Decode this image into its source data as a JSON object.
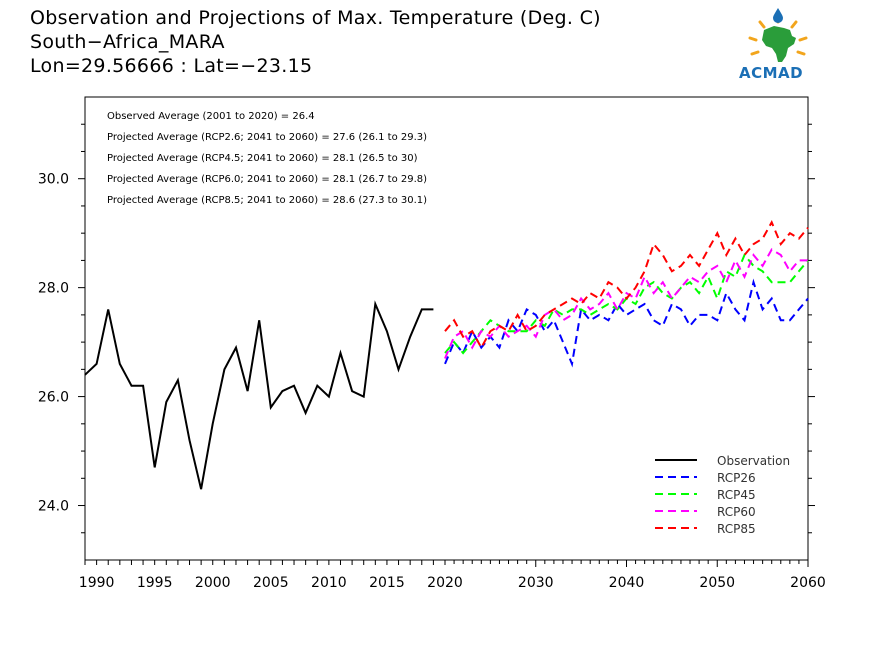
{
  "header": {
    "title_line1": "Observation and Projections of Max. Temperature (Deg. C)",
    "title_line2": "South−Africa_MARA",
    "title_line3": "Lon=29.56666 : Lat=−23.15"
  },
  "logo": {
    "text": "ACMAD",
    "icon": "africa-map-logo-icon",
    "colors": {
      "map": "#2a9d3a",
      "sun": "#f2a51c",
      "drop": "#1b6fb5",
      "text": "#1b6fb5"
    }
  },
  "annotations": [
    "Observed Average (2001 to 2020) = 26.4",
    "Projected Average (RCP2.6; 2041 to 2060) = 27.6 (26.1 to 29.3)",
    "Projected Average (RCP4.5; 2041 to 2060) = 28.1 (26.5 to 30)",
    "Projected Average (RCP6.0; 2041 to 2060) = 28.1 (26.7 to 29.8)",
    "Projected Average (RCP8.5; 2041 to 2060) = 28.6 (27.3 to 30.1)"
  ],
  "chart_data": {
    "type": "line",
    "title": "Observation and Projections of Max. Temperature (Deg. C)",
    "xlabel": "",
    "ylabel": "",
    "ylim": [
      23.0,
      31.5
    ],
    "grid": false,
    "legend_position": "bottom-right",
    "x_tick_labels": [
      "1990",
      "1995",
      "2000",
      "2005",
      "2010",
      "2015",
      "2020",
      "2030",
      "2040",
      "2050",
      "2060"
    ],
    "y_tick_labels": [
      "24.0",
      "26.0",
      "28.0",
      "30.0"
    ],
    "series": [
      {
        "name": "Observation",
        "style": "solid",
        "color": "#000000",
        "x": [
          1989,
          1990,
          1991,
          1992,
          1993,
          1994,
          1995,
          1996,
          1997,
          1998,
          1999,
          2000,
          2001,
          2002,
          2003,
          2004,
          2005,
          2006,
          2007,
          2008,
          2009,
          2010,
          2011,
          2012,
          2013,
          2014,
          2015,
          2016,
          2017,
          2018,
          2019
        ],
        "values": [
          26.4,
          26.6,
          27.6,
          26.6,
          26.2,
          26.2,
          24.7,
          25.9,
          26.3,
          25.2,
          24.3,
          25.5,
          26.5,
          26.9,
          26.1,
          27.4,
          25.8,
          26.1,
          26.2,
          25.7,
          26.2,
          26.0,
          26.8,
          26.1,
          26.0,
          27.7,
          27.2,
          26.5,
          27.1,
          27.6,
          27.6
        ]
      },
      {
        "name": "RCP26",
        "style": "dashed",
        "color": "#0000ff",
        "x": [
          2020,
          2021,
          2022,
          2023,
          2024,
          2025,
          2026,
          2027,
          2028,
          2029,
          2030,
          2031,
          2032,
          2033,
          2034,
          2035,
          2036,
          2037,
          2038,
          2039,
          2040,
          2041,
          2042,
          2043,
          2044,
          2045,
          2046,
          2047,
          2048,
          2049,
          2050,
          2051,
          2052,
          2053,
          2054,
          2055,
          2056,
          2057,
          2058,
          2059,
          2060
        ],
        "values": [
          26.6,
          27.0,
          26.8,
          27.2,
          26.9,
          27.1,
          26.9,
          27.4,
          27.2,
          27.6,
          27.5,
          27.2,
          27.4,
          27.0,
          26.6,
          27.6,
          27.4,
          27.5,
          27.4,
          27.7,
          27.5,
          27.6,
          27.7,
          27.4,
          27.3,
          27.7,
          27.6,
          27.3,
          27.5,
          27.5,
          27.4,
          27.9,
          27.6,
          27.4,
          28.1,
          27.6,
          27.8,
          27.4,
          27.4,
          27.6,
          27.8
        ]
      },
      {
        "name": "RCP45",
        "style": "dashed",
        "color": "#00ff00",
        "x": [
          2020,
          2021,
          2022,
          2023,
          2024,
          2025,
          2026,
          2027,
          2028,
          2029,
          2030,
          2031,
          2032,
          2033,
          2034,
          2035,
          2036,
          2037,
          2038,
          2039,
          2040,
          2041,
          2042,
          2043,
          2044,
          2045,
          2046,
          2047,
          2048,
          2049,
          2050,
          2051,
          2052,
          2053,
          2054,
          2055,
          2056,
          2057,
          2058,
          2059,
          2060
        ],
        "values": [
          26.8,
          27.0,
          26.8,
          27.0,
          27.2,
          27.4,
          27.3,
          27.2,
          27.2,
          27.2,
          27.4,
          27.3,
          27.6,
          27.5,
          27.6,
          27.6,
          27.5,
          27.6,
          27.7,
          27.6,
          27.8,
          27.7,
          28.0,
          28.1,
          27.9,
          27.8,
          28.0,
          28.1,
          27.9,
          28.2,
          27.8,
          28.3,
          28.2,
          28.6,
          28.4,
          28.3,
          28.1,
          28.1,
          28.1,
          28.3,
          28.5
        ]
      },
      {
        "name": "RCP60",
        "style": "dashed",
        "color": "#ff00ff",
        "x": [
          2020,
          2021,
          2022,
          2023,
          2024,
          2025,
          2026,
          2027,
          2028,
          2029,
          2030,
          2031,
          2032,
          2033,
          2034,
          2035,
          2036,
          2037,
          2038,
          2039,
          2040,
          2041,
          2042,
          2043,
          2044,
          2045,
          2046,
          2047,
          2048,
          2049,
          2050,
          2051,
          2052,
          2053,
          2054,
          2055,
          2056,
          2057,
          2058,
          2059,
          2060
        ],
        "values": [
          26.7,
          27.1,
          27.2,
          26.9,
          27.2,
          27.1,
          27.3,
          27.1,
          27.2,
          27.3,
          27.1,
          27.5,
          27.6,
          27.4,
          27.5,
          27.8,
          27.6,
          27.7,
          27.9,
          27.6,
          27.9,
          27.8,
          28.2,
          27.9,
          28.1,
          27.8,
          28.0,
          28.2,
          28.1,
          28.3,
          28.4,
          28.1,
          28.5,
          28.2,
          28.6,
          28.4,
          28.7,
          28.6,
          28.3,
          28.5,
          28.5
        ]
      },
      {
        "name": "RCP85",
        "style": "dashed",
        "color": "#ff0000",
        "x": [
          2020,
          2021,
          2022,
          2023,
          2024,
          2025,
          2026,
          2027,
          2028,
          2029,
          2030,
          2031,
          2032,
          2033,
          2034,
          2035,
          2036,
          2037,
          2038,
          2039,
          2040,
          2041,
          2042,
          2043,
          2044,
          2045,
          2046,
          2047,
          2048,
          2049,
          2050,
          2051,
          2052,
          2053,
          2054,
          2055,
          2056,
          2057,
          2058,
          2059,
          2060
        ],
        "values": [
          27.2,
          27.4,
          27.1,
          27.2,
          26.9,
          27.2,
          27.3,
          27.2,
          27.5,
          27.2,
          27.3,
          27.5,
          27.6,
          27.7,
          27.8,
          27.7,
          27.9,
          27.8,
          28.1,
          28.0,
          27.8,
          28.0,
          28.3,
          28.8,
          28.6,
          28.3,
          28.4,
          28.6,
          28.4,
          28.7,
          29.0,
          28.6,
          28.9,
          28.6,
          28.8,
          28.9,
          29.2,
          28.8,
          29.0,
          28.9,
          29.1
        ]
      }
    ]
  }
}
